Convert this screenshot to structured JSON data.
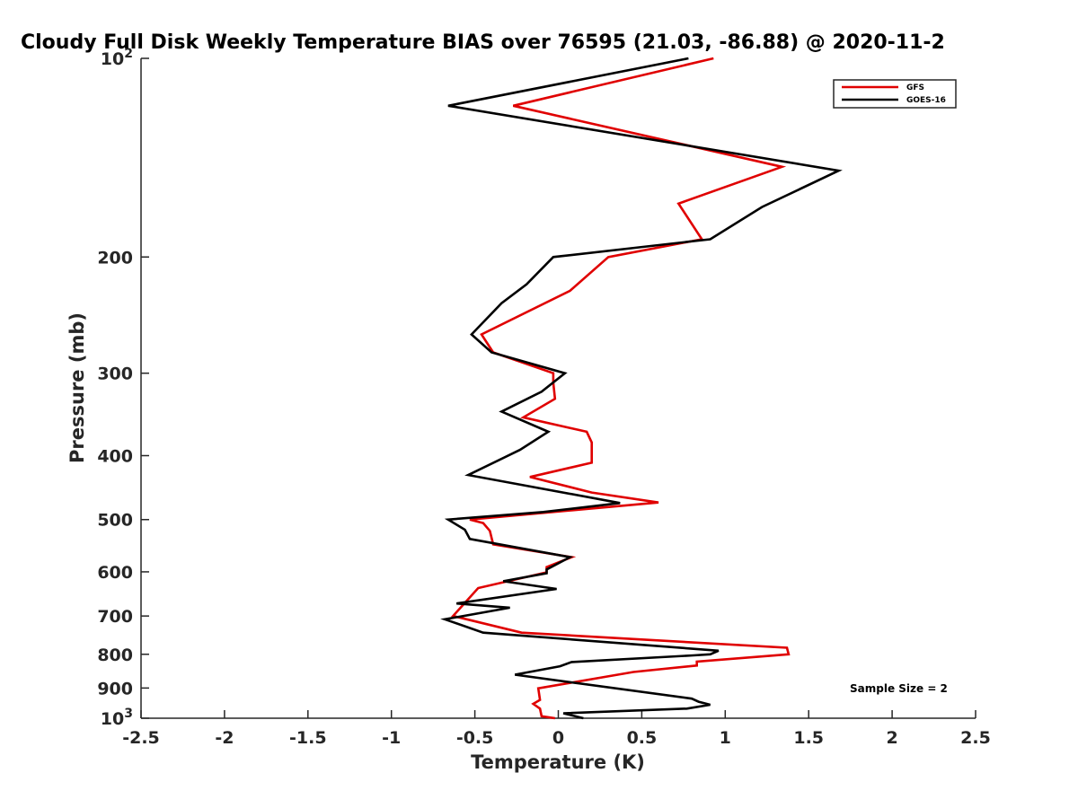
{
  "chart_data": {
    "type": "line",
    "title": "Cloudy Full Disk Weekly Temperature BIAS over 76595 (21.03, -86.88) @ 2020-11-2",
    "xlabel": "Temperature (K)",
    "ylabel": "Pressure (mb)",
    "xlim": [
      -2.5,
      2.5
    ],
    "ylim": [
      100,
      1000
    ],
    "yscale": "log",
    "y_reversed": true,
    "x_ticks": [
      -2.5,
      -2,
      -1.5,
      -1,
      -0.5,
      0,
      0.5,
      1,
      1.5,
      2,
      2.5
    ],
    "x_tick_labels": [
      "-2.5",
      "-2",
      "-1.5",
      "-1",
      "-0.5",
      "0",
      "0.5",
      "1",
      "1.5",
      "2",
      "2.5"
    ],
    "y_ticks": [
      100,
      200,
      300,
      400,
      500,
      600,
      700,
      800,
      900,
      1000
    ],
    "y_tick_labels": [
      {
        "base": "10",
        "exp": "2"
      },
      {
        "base": "200"
      },
      {
        "base": "300"
      },
      {
        "base": "400"
      },
      {
        "base": "500"
      },
      {
        "base": "600"
      },
      {
        "base": "700"
      },
      {
        "base": "800"
      },
      {
        "base": "900"
      },
      {
        "base": "10",
        "exp": "3"
      }
    ],
    "grid": false,
    "legend_position": "top-right",
    "annotation": "Sample Size = 2",
    "series": [
      {
        "name": "GFS",
        "color": "#e00000",
        "points": [
          [
            0.93,
            100
          ],
          [
            -0.27,
            118
          ],
          [
            1.34,
            146
          ],
          [
            0.72,
            166
          ],
          [
            0.86,
            188
          ],
          [
            0.3,
            200
          ],
          [
            0.07,
            225
          ],
          [
            -0.46,
            262
          ],
          [
            -0.39,
            279
          ],
          [
            -0.03,
            300
          ],
          [
            -0.03,
            310
          ],
          [
            -0.02,
            328
          ],
          [
            -0.21,
            350
          ],
          [
            0.17,
            368
          ],
          [
            0.2,
            382
          ],
          [
            0.2,
            410
          ],
          [
            -0.17,
            431
          ],
          [
            0.2,
            455
          ],
          [
            0.6,
            471
          ],
          [
            -0.53,
            500
          ],
          [
            -0.45,
            506
          ],
          [
            -0.41,
            520
          ],
          [
            -0.39,
            545
          ],
          [
            0.08,
            570
          ],
          [
            -0.07,
            590
          ],
          [
            -0.07,
            601
          ],
          [
            -0.48,
            635
          ],
          [
            -0.63,
            700
          ],
          [
            -0.22,
            742
          ],
          [
            1.37,
            782
          ],
          [
            1.38,
            800
          ],
          [
            0.83,
            821
          ],
          [
            0.83,
            832
          ],
          [
            0.45,
            851
          ],
          [
            -0.12,
            901
          ],
          [
            -0.11,
            938
          ],
          [
            -0.15,
            951
          ],
          [
            -0.11,
            967
          ],
          [
            -0.1,
            993
          ],
          [
            -0.02,
            1000
          ]
        ]
      },
      {
        "name": "GOES-16",
        "color": "#000000",
        "points": [
          [
            0.78,
            100
          ],
          [
            -0.66,
            118
          ],
          [
            1.68,
            148
          ],
          [
            1.22,
            168
          ],
          [
            0.91,
            188
          ],
          [
            -0.03,
            200
          ],
          [
            -0.19,
            220
          ],
          [
            -0.34,
            235
          ],
          [
            -0.52,
            262
          ],
          [
            -0.4,
            279
          ],
          [
            0.04,
            300
          ],
          [
            -0.1,
            320
          ],
          [
            -0.34,
            343
          ],
          [
            -0.06,
            368
          ],
          [
            -0.23,
            392
          ],
          [
            -0.54,
            428
          ],
          [
            0.37,
            472
          ],
          [
            -0.09,
            487
          ],
          [
            -0.66,
            500
          ],
          [
            -0.56,
            518
          ],
          [
            -0.53,
            535
          ],
          [
            0.07,
            570
          ],
          [
            -0.07,
            595
          ],
          [
            -0.07,
            603
          ],
          [
            -0.33,
            620
          ],
          [
            -0.01,
            637
          ],
          [
            -0.61,
            670
          ],
          [
            -0.29,
            680
          ],
          [
            -0.68,
            708
          ],
          [
            -0.45,
            742
          ],
          [
            0.96,
            790
          ],
          [
            0.91,
            800
          ],
          [
            0.81,
            803
          ],
          [
            0.08,
            822
          ],
          [
            0.01,
            834
          ],
          [
            -0.26,
            859
          ],
          [
            0.8,
            934
          ],
          [
            0.84,
            944
          ],
          [
            0.91,
            954
          ],
          [
            0.77,
            967
          ],
          [
            0.03,
            983
          ],
          [
            0.15,
            1000
          ]
        ]
      }
    ]
  }
}
